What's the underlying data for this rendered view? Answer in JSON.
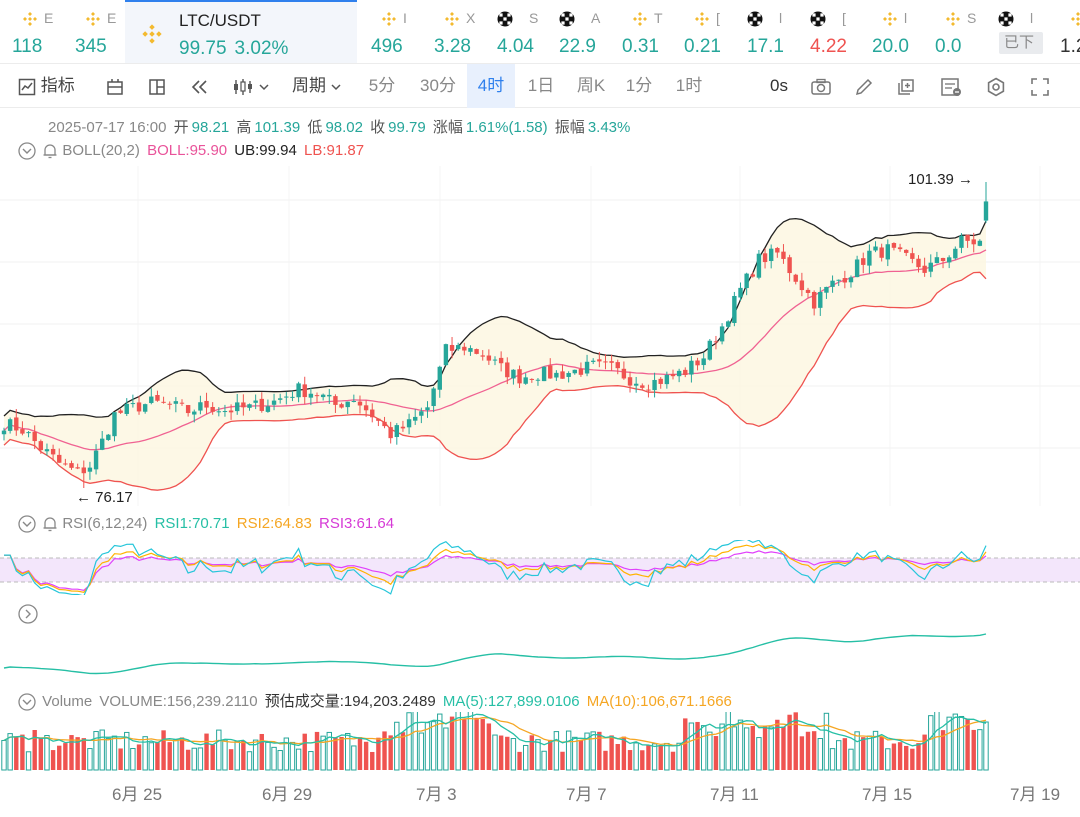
{
  "ticker": {
    "items": [
      {
        "icon": "bnb",
        "name": "E",
        "price": "118",
        "dir": "up",
        "x": 12
      },
      {
        "icon": "bnb",
        "name": "E",
        "price": "345",
        "dir": "up",
        "x": 75
      },
      {
        "icon": "bnb",
        "name": "I",
        "price": "496",
        "dir": "up",
        "x": 371
      },
      {
        "icon": "bnb",
        "name": "X",
        "price": "3.28",
        "dir": "up",
        "x": 434
      },
      {
        "icon": "okx",
        "name": "S",
        "price": "4.04",
        "dir": "up",
        "x": 497
      },
      {
        "icon": "okx",
        "name": "A",
        "price": "22.9",
        "dir": "up",
        "x": 559
      },
      {
        "icon": "bnb",
        "name": "T",
        "price": "0.31",
        "dir": "up",
        "x": 622
      },
      {
        "icon": "bnb",
        "name": "[",
        "price": "0.21",
        "dir": "up",
        "x": 684
      },
      {
        "icon": "okx",
        "name": "l",
        "price": "17.1",
        "dir": "up",
        "x": 747
      },
      {
        "icon": "okx",
        "name": "[",
        "price": "4.22",
        "dir": "down",
        "x": 810
      },
      {
        "icon": "bnb",
        "name": "l",
        "price": "20.0",
        "dir": "up",
        "x": 872
      },
      {
        "icon": "bnb",
        "name": "S",
        "price": "0.0",
        "dir": "up",
        "x": 935
      },
      {
        "icon": "okx",
        "name": "l",
        "price": "",
        "dir": "up",
        "x": 998
      },
      {
        "icon": "bnb",
        "name": "",
        "price": "1.2",
        "dir": "dark",
        "x": 1060
      }
    ],
    "active": {
      "symbol": "LTC/USDT",
      "price": "99.75",
      "change": "3.02%"
    },
    "done_badge": "已下"
  },
  "toolbar": {
    "indicator_label": "指标",
    "period_label": "周期",
    "periods": [
      "5分",
      "30分",
      "4时",
      "1日",
      "周K",
      "1分",
      "1时"
    ],
    "active_period": "4时",
    "countdown": "0s"
  },
  "ohlc": {
    "time": "2025-07-17 16:00",
    "open_label": "开",
    "open": "98.21",
    "high_label": "高",
    "high": "101.39",
    "low_label": "低",
    "low": "98.02",
    "close_label": "收",
    "close": "99.79",
    "change_label": "涨幅",
    "change": "1.61%(1.58)",
    "amp_label": "振幅",
    "amp": "3.43%"
  },
  "boll": {
    "name": "BOLL(20,2)",
    "mid": "BOLL:95.90",
    "ub": "UB:99.94",
    "lb": "LB:91.87"
  },
  "rsi": {
    "name": "RSI(6,12,24)",
    "rsi1": "RSI1:70.71",
    "rsi2": "RSI2:64.83",
    "rsi3": "RSI3:61.64"
  },
  "volume": {
    "name": "Volume",
    "value": "VOLUME:156,239.2110",
    "estimate": "预估成交量:194,203.2489",
    "ma5": "MA(5):127,899.0106",
    "ma10": "MA(10):106,671.1666"
  },
  "markers": {
    "high": "101.39",
    "low": "76.17"
  },
  "x_axis": [
    "6月 25",
    "6月 29",
    "7月 3",
    "7月 7",
    "7月 11",
    "7月 15",
    "7月 19"
  ],
  "colors": {
    "up": "#26a69a",
    "down": "#ef5350",
    "accent": "#2f80ed",
    "boll_mid": "#f06292",
    "rsi1": "#26c6da",
    "rsi2": "#ffb300",
    "rsi3": "#e040fb"
  },
  "chart_data": {
    "type": "candlestick",
    "interval": "4h",
    "ylim": [
      76.17,
      101.39
    ],
    "anchors_price": [
      [
        0,
        81.5
      ],
      [
        3,
        81.0
      ],
      [
        6,
        79.5
      ],
      [
        9,
        78.2
      ],
      [
        12,
        77.4
      ],
      [
        14,
        78.0
      ],
      [
        16,
        80.0
      ],
      [
        18,
        82.2
      ],
      [
        21,
        82.8
      ],
      [
        24,
        83.2
      ],
      [
        27,
        83.0
      ],
      [
        30,
        82.5
      ],
      [
        33,
        83.0
      ],
      [
        36,
        82.6
      ],
      [
        40,
        82.8
      ],
      [
        44,
        83.3
      ],
      [
        48,
        84.3
      ],
      [
        51,
        84.0
      ],
      [
        54,
        83.0
      ],
      [
        57,
        83.6
      ],
      [
        60,
        82.2
      ],
      [
        63,
        80.6
      ],
      [
        66,
        81.4
      ],
      [
        69,
        82.8
      ],
      [
        72,
        87.5
      ],
      [
        75,
        87.8
      ],
      [
        78,
        87.2
      ],
      [
        81,
        86.0
      ],
      [
        84,
        85.3
      ],
      [
        87,
        85.6
      ],
      [
        90,
        85.5
      ],
      [
        93,
        85.8
      ],
      [
        96,
        86.2
      ],
      [
        99,
        86.0
      ],
      [
        102,
        85.2
      ],
      [
        105,
        84.8
      ],
      [
        108,
        85.2
      ],
      [
        111,
        85.8
      ],
      [
        114,
        87.0
      ],
      [
        117,
        89.5
      ],
      [
        120,
        92.5
      ],
      [
        123,
        95.0
      ],
      [
        126,
        95.5
      ],
      [
        129,
        93.5
      ],
      [
        132,
        91.5
      ],
      [
        135,
        93.0
      ],
      [
        138,
        94.0
      ],
      [
        141,
        95.5
      ],
      [
        144,
        95.8
      ],
      [
        147,
        95.0
      ],
      [
        150,
        94.2
      ],
      [
        153,
        95.0
      ],
      [
        156,
        96.5
      ],
      [
        159,
        96.4
      ],
      [
        160,
        97.8
      ]
    ]
  }
}
